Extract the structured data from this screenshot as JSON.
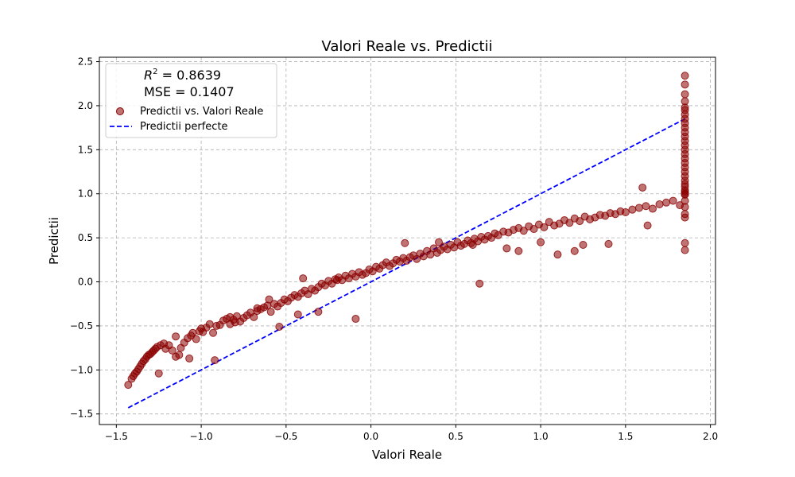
{
  "chart_data": {
    "type": "scatter",
    "title": "Valori Reale vs. Predictii",
    "xlabel": "Valori Reale",
    "ylabel": "Predictii",
    "xlim": [
      -1.6,
      2.03
    ],
    "ylim": [
      -1.62,
      2.55
    ],
    "xticks": [
      -1.5,
      -1.0,
      -0.5,
      0.0,
      0.5,
      1.0,
      1.5,
      2.0
    ],
    "xtick_labels": [
      "−1.5",
      "−1.0",
      "−0.5",
      "0.0",
      "0.5",
      "1.0",
      "1.5",
      "2.0"
    ],
    "yticks": [
      -1.5,
      -1.0,
      -0.5,
      0.0,
      0.5,
      1.0,
      1.5,
      2.0,
      2.5
    ],
    "ytick_labels": [
      "−1.5",
      "−1.0",
      "−0.5",
      "0.0",
      "0.5",
      "1.0",
      "1.5",
      "2.0",
      "2.5"
    ],
    "grid": true,
    "legend_position": "top-left",
    "stats": {
      "r2_symbol": "R",
      "r2_exponent": "2",
      "r2_value": " = 0.8639",
      "mse_text": "MSE = 0.1407"
    },
    "colors": {
      "points": "#8b0000",
      "ideal_line": "#0000ff"
    },
    "series": [
      {
        "name": "Predictii vs. Valori Reale",
        "kind": "points",
        "x": [
          -1.43,
          -1.41,
          -1.4,
          -1.39,
          -1.38,
          -1.37,
          -1.36,
          -1.35,
          -1.34,
          -1.33,
          -1.32,
          -1.31,
          -1.3,
          -1.29,
          -1.28,
          -1.27,
          -1.26,
          -1.24,
          -1.22,
          -1.21,
          -1.19,
          -1.17,
          -1.15,
          -1.13,
          -1.12,
          -1.1,
          -1.08,
          -1.06,
          -1.05,
          -1.03,
          -1.01,
          -0.99,
          -0.97,
          -0.95,
          -0.93,
          -0.91,
          -0.89,
          -0.87,
          -0.85,
          -0.83,
          -0.81,
          -0.79,
          -0.77,
          -0.75,
          -0.73,
          -0.71,
          -0.69,
          -0.67,
          -0.65,
          -0.63,
          -0.61,
          -0.59,
          -0.57,
          -0.55,
          -0.53,
          -0.51,
          -0.49,
          -0.47,
          -0.45,
          -0.43,
          -0.41,
          -0.39,
          -0.37,
          -0.35,
          -0.33,
          -0.31,
          -0.29,
          -0.27,
          -0.25,
          -0.23,
          -0.21,
          -0.19,
          -0.17,
          -0.15,
          -0.13,
          -0.11,
          -0.09,
          -0.07,
          -0.05,
          -0.03,
          -0.01,
          0.01,
          0.03,
          0.05,
          0.07,
          0.09,
          0.11,
          0.13,
          0.15,
          0.17,
          0.19,
          0.21,
          0.23,
          0.25,
          0.27,
          0.29,
          0.31,
          0.33,
          0.35,
          0.37,
          0.39,
          0.41,
          0.43,
          0.45,
          0.47,
          0.49,
          0.51,
          0.53,
          0.55,
          0.57,
          0.59,
          0.61,
          0.63,
          0.65,
          0.67,
          0.69,
          0.71,
          0.73,
          0.75,
          0.78,
          0.81,
          0.84,
          0.87,
          0.9,
          0.93,
          0.96,
          0.99,
          1.02,
          1.05,
          1.08,
          1.11,
          1.14,
          1.17,
          1.2,
          1.23,
          1.26,
          1.29,
          1.32,
          1.35,
          1.38,
          1.41,
          1.44,
          1.47,
          1.5,
          1.54,
          1.58,
          1.62,
          1.66,
          1.7,
          1.74,
          1.78,
          1.82,
          -1.25,
          -1.07,
          -0.92,
          -0.83,
          -0.67,
          -0.54,
          -0.43,
          -0.31,
          -0.09,
          0.64,
          0.87,
          1.1,
          1.25,
          1.4,
          1.63,
          -1.15,
          -1.0,
          -0.8,
          -0.6,
          -0.4,
          -0.2,
          0.2,
          0.4,
          0.6,
          0.8,
          1.0,
          1.2,
          1.6,
          1.85,
          1.85,
          1.85,
          1.85,
          1.85,
          1.85,
          1.85,
          1.85,
          1.85,
          1.85,
          1.85,
          1.85,
          1.85,
          1.85,
          1.85,
          1.85,
          1.85,
          1.85,
          1.85,
          1.85,
          1.85,
          1.85,
          1.85,
          1.85,
          1.85,
          1.85,
          1.85,
          1.85,
          1.85,
          1.85,
          1.85,
          1.85,
          1.85,
          1.85
        ],
        "y": [
          -1.17,
          -1.1,
          -1.07,
          -1.04,
          -1.02,
          -0.99,
          -0.96,
          -0.93,
          -0.9,
          -0.88,
          -0.85,
          -0.83,
          -0.82,
          -0.8,
          -0.78,
          -0.76,
          -0.74,
          -0.72,
          -0.7,
          -0.76,
          -0.72,
          -0.78,
          -0.85,
          -0.83,
          -0.75,
          -0.69,
          -0.64,
          -0.61,
          -0.58,
          -0.65,
          -0.56,
          -0.57,
          -0.52,
          -0.48,
          -0.58,
          -0.5,
          -0.49,
          -0.44,
          -0.42,
          -0.4,
          -0.43,
          -0.39,
          -0.45,
          -0.41,
          -0.38,
          -0.35,
          -0.4,
          -0.33,
          -0.31,
          -0.29,
          -0.27,
          -0.34,
          -0.25,
          -0.28,
          -0.24,
          -0.2,
          -0.22,
          -0.18,
          -0.15,
          -0.17,
          -0.13,
          -0.1,
          -0.14,
          -0.08,
          -0.1,
          -0.06,
          -0.02,
          -0.04,
          0.01,
          -0.02,
          0.03,
          0.05,
          0.02,
          0.07,
          0.04,
          0.09,
          0.06,
          0.11,
          0.08,
          0.1,
          0.14,
          0.12,
          0.17,
          0.15,
          0.19,
          0.22,
          0.18,
          0.21,
          0.25,
          0.23,
          0.27,
          0.24,
          0.28,
          0.3,
          0.26,
          0.32,
          0.29,
          0.35,
          0.31,
          0.38,
          0.33,
          0.36,
          0.4,
          0.37,
          0.42,
          0.39,
          0.45,
          0.41,
          0.43,
          0.47,
          0.44,
          0.49,
          0.46,
          0.51,
          0.48,
          0.52,
          0.5,
          0.55,
          0.53,
          0.57,
          0.56,
          0.59,
          0.61,
          0.58,
          0.63,
          0.6,
          0.65,
          0.62,
          0.68,
          0.64,
          0.66,
          0.7,
          0.67,
          0.72,
          0.69,
          0.74,
          0.71,
          0.73,
          0.76,
          0.75,
          0.78,
          0.77,
          0.8,
          0.79,
          0.82,
          0.84,
          0.86,
          0.83,
          0.88,
          0.9,
          0.92,
          0.87,
          -1.04,
          -0.87,
          -0.89,
          -0.48,
          -0.3,
          -0.51,
          -0.37,
          -0.34,
          -0.42,
          -0.02,
          0.35,
          0.31,
          0.42,
          0.43,
          0.64,
          -0.62,
          -0.53,
          -0.46,
          -0.2,
          0.04,
          0.02,
          0.44,
          0.45,
          0.42,
          0.38,
          0.45,
          0.35,
          1.07,
          0.36,
          0.44,
          0.73,
          0.77,
          0.85,
          0.92,
          0.99,
          1.04,
          1.08,
          1.11,
          1.15,
          1.2,
          1.25,
          1.3,
          1.35,
          1.4,
          1.45,
          1.5,
          1.55,
          1.6,
          1.65,
          1.7,
          1.75,
          1.8,
          1.85,
          1.9,
          1.95,
          1.98,
          2.05,
          2.13,
          2.24,
          2.34,
          1.0,
          1.02
        ]
      },
      {
        "name": "Predictii perfecte",
        "kind": "line",
        "x": [
          -1.43,
          1.85
        ],
        "y": [
          -1.43,
          1.85
        ]
      }
    ]
  }
}
